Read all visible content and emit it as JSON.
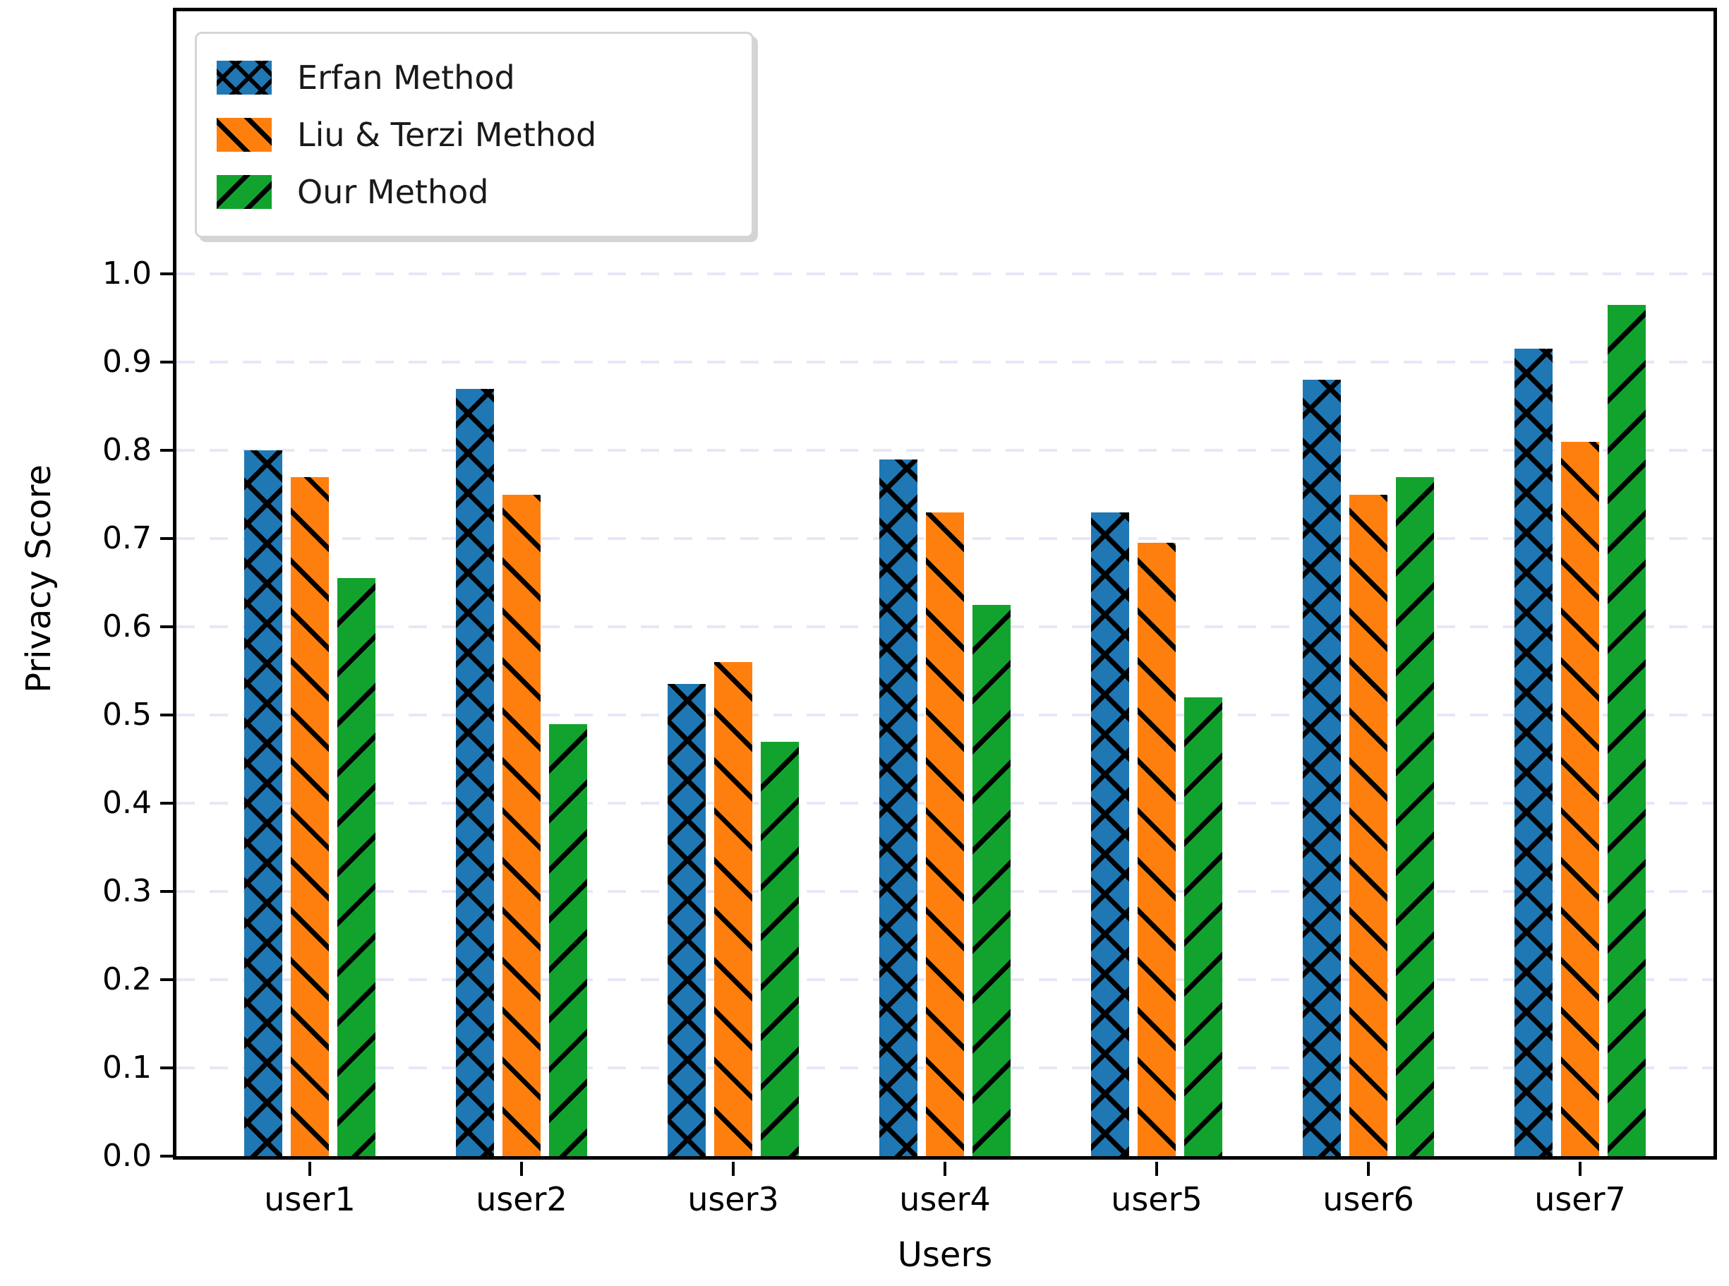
{
  "chart_data": {
    "type": "bar",
    "title": "",
    "xlabel": "Users",
    "ylabel": "Privacy Score",
    "categories": [
      "user1",
      "user2",
      "user3",
      "user4",
      "user5",
      "user6",
      "user7"
    ],
    "series": [
      {
        "name": "Erfan Method",
        "color": "#1f77b4",
        "hatch": "x",
        "values": [
          0.8,
          0.87,
          0.535,
          0.79,
          0.73,
          0.88,
          0.915
        ]
      },
      {
        "name": "Liu & Terzi Method",
        "color": "#ff7f0e",
        "hatch": "\\",
        "values": [
          0.77,
          0.75,
          0.56,
          0.73,
          0.695,
          0.75,
          0.81
        ]
      },
      {
        "name": "Our Method",
        "color": "#12a22e",
        "hatch": "/",
        "values": [
          0.655,
          0.49,
          0.47,
          0.625,
          0.52,
          0.77,
          0.965
        ]
      }
    ],
    "ylim": [
      0.0,
      1.3
    ],
    "yticks": [
      0.0,
      0.1,
      0.2,
      0.3,
      0.4,
      0.5,
      0.6,
      0.7,
      0.8,
      0.9,
      1.0
    ],
    "yticklabels": [
      "0.0",
      "0.1",
      "0.2",
      "0.3",
      "0.4",
      "0.5",
      "0.6",
      "0.7",
      "0.8",
      "0.9",
      "1.0"
    ],
    "grid": {
      "axis": "y",
      "style": "dashed",
      "color": "#e7e7f8",
      "on": true
    },
    "legend": {
      "position": "upper left",
      "entries": [
        "Erfan Method",
        "Liu & Terzi Method",
        "Our Method"
      ]
    }
  }
}
